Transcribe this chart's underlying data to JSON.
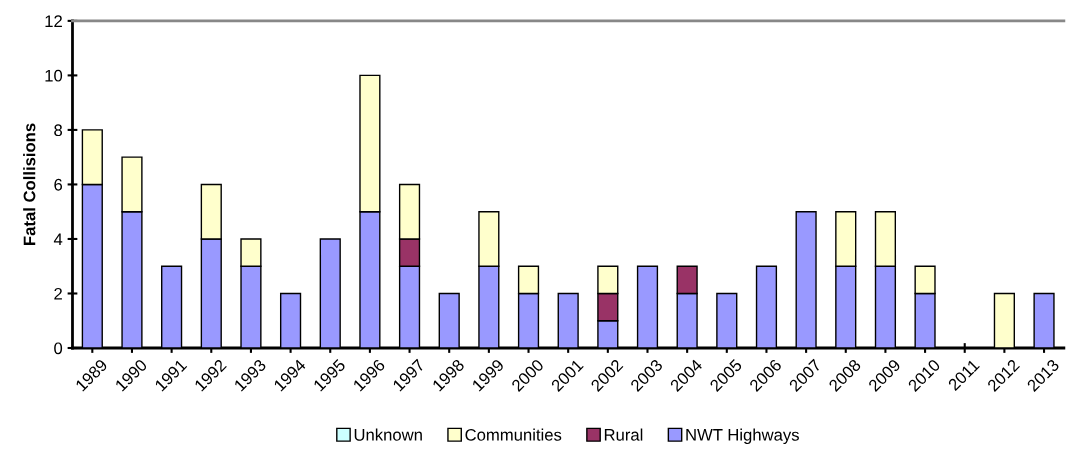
{
  "chart_data": {
    "type": "bar",
    "stacked": true,
    "ylabel": "Fatal Collisions",
    "categories": [
      "1989",
      "1990",
      "1991",
      "1992",
      "1993",
      "1994",
      "1995",
      "1996",
      "1997",
      "1998",
      "1999",
      "2000",
      "2001",
      "2002",
      "2003",
      "2004",
      "2005",
      "2006",
      "2007",
      "2008",
      "2009",
      "2010",
      "2011",
      "2012",
      "2013"
    ],
    "series": [
      {
        "name": "NWT Highways",
        "color": "#9999ff",
        "values": [
          6,
          5,
          3,
          4,
          3,
          2,
          4,
          5,
          3,
          2,
          3,
          2,
          2,
          1,
          3,
          2,
          2,
          3,
          5,
          3,
          3,
          2,
          0,
          0,
          2
        ]
      },
      {
        "name": "Rural",
        "color": "#993366",
        "values": [
          0,
          0,
          0,
          0,
          0,
          0,
          0,
          0,
          1,
          0,
          0,
          0,
          0,
          1,
          0,
          1,
          0,
          0,
          0,
          0,
          0,
          0,
          0,
          0,
          0
        ]
      },
      {
        "name": "Communities",
        "color": "#ffffcc",
        "values": [
          2,
          2,
          0,
          2,
          1,
          0,
          0,
          5,
          2,
          0,
          2,
          1,
          0,
          1,
          0,
          0,
          0,
          0,
          0,
          2,
          2,
          1,
          0,
          2,
          0
        ]
      },
      {
        "name": "Unknown",
        "color": "#ccffff",
        "values": [
          0,
          0,
          0,
          0,
          0,
          0,
          0,
          0,
          0,
          0,
          0,
          0,
          0,
          0,
          0,
          0,
          0,
          0,
          0,
          0,
          0,
          0,
          0,
          0,
          0
        ]
      }
    ],
    "ylim": [
      0,
      12
    ],
    "yticks": [
      0,
      2,
      4,
      6,
      8,
      10,
      12
    ],
    "grid": false,
    "legend": "bottom"
  }
}
